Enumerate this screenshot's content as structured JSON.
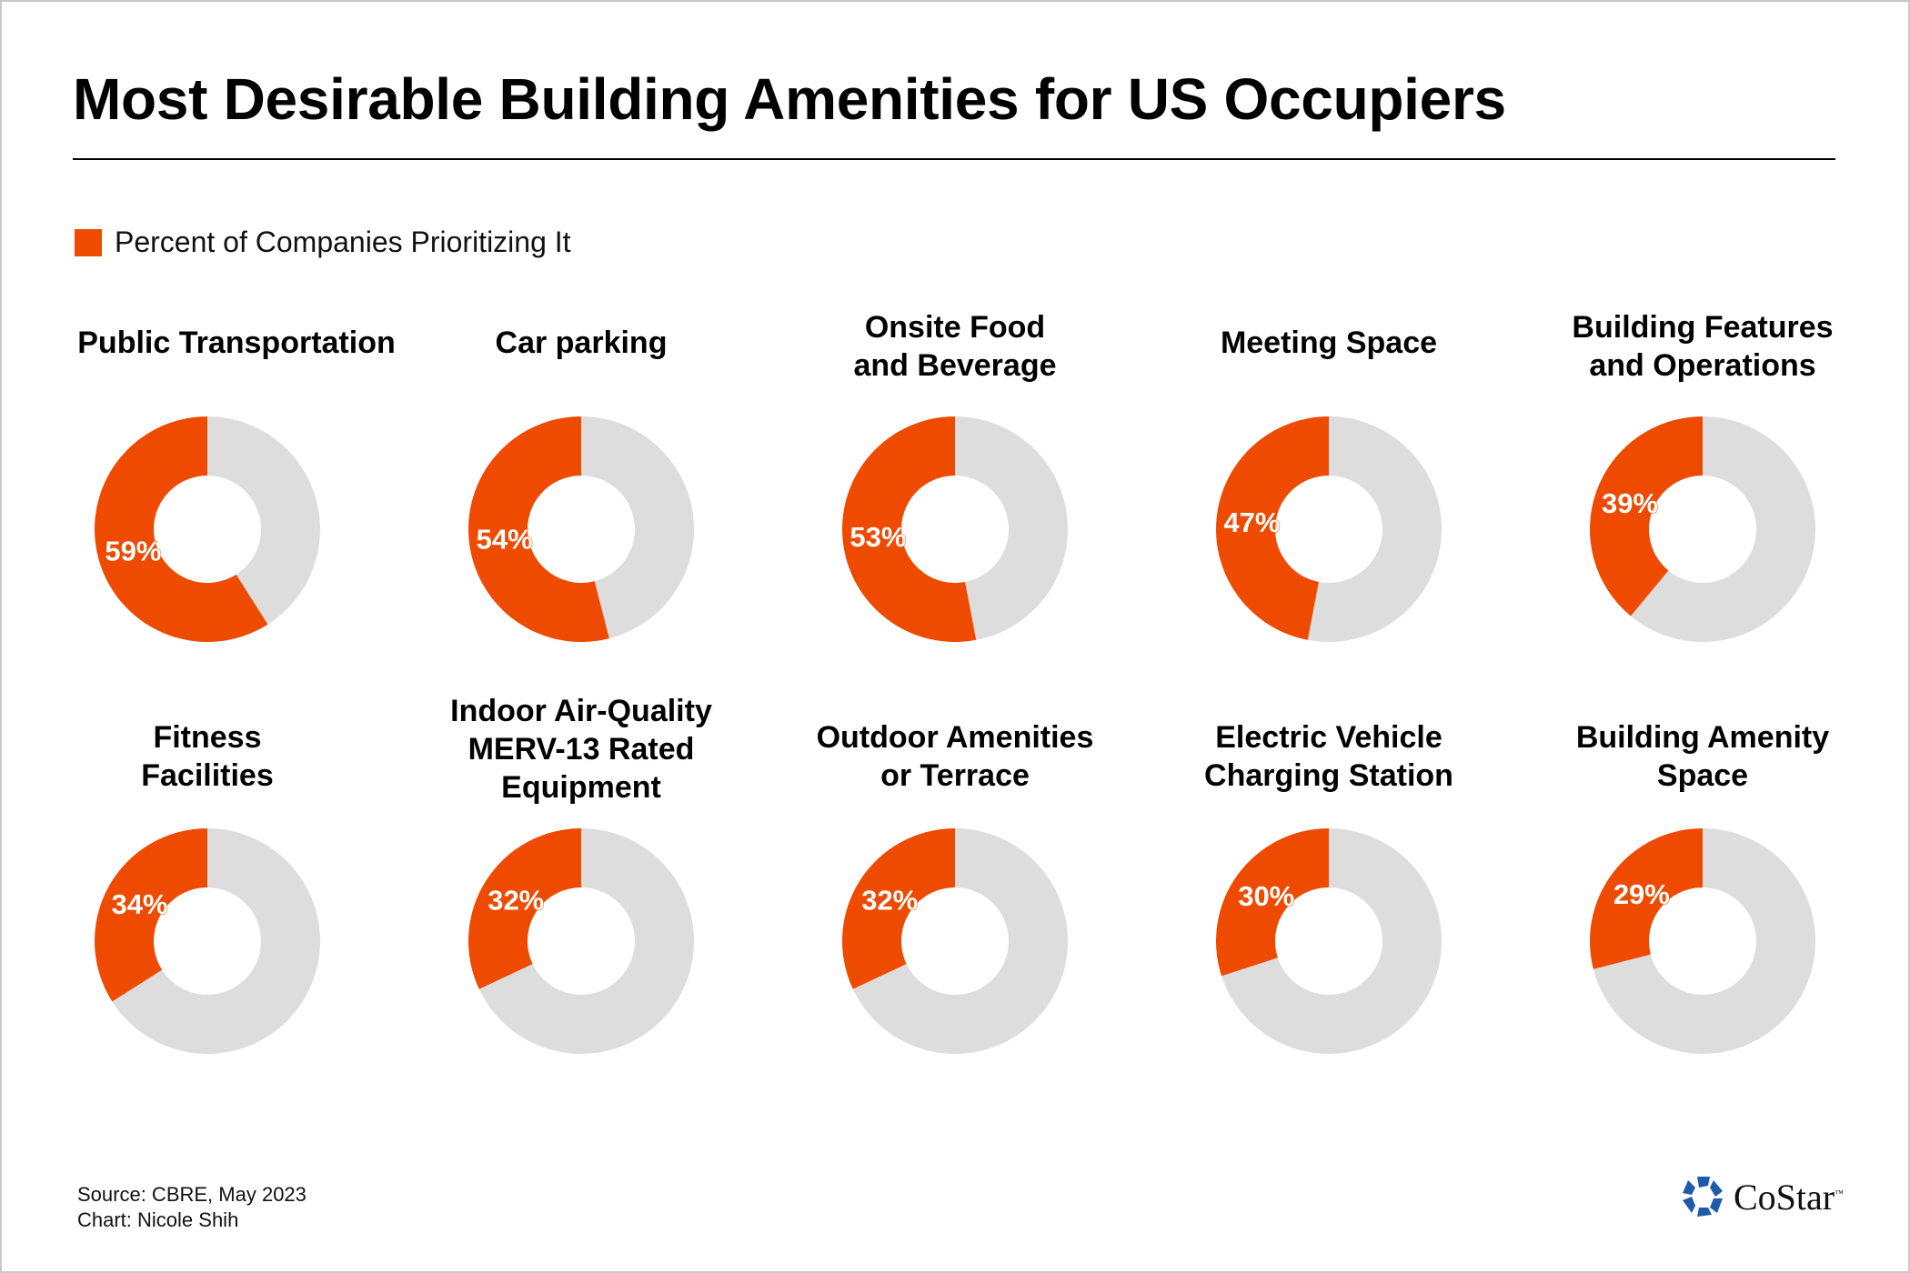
{
  "title": "Most Desirable Building Amenities for US Occupiers",
  "legend": {
    "label": "Percent of Companies Prioritizing It",
    "color": "#ee4a00"
  },
  "footer": {
    "source": "Source: CBRE, May 2023",
    "credit": "Chart: Nicole Shih"
  },
  "logo": {
    "text": "CoStar",
    "tm": "™"
  },
  "chart_data": {
    "type": "donut",
    "colors": {
      "value": "#ee4a00",
      "remainder": "#dddddd"
    },
    "series_name": "Percent of Companies Prioritizing It",
    "items": [
      {
        "label": [
          "Public Transportation"
        ],
        "value": 59,
        "display": "59%"
      },
      {
        "label": [
          "Car parking"
        ],
        "value": 54,
        "display": "54%"
      },
      {
        "label": [
          "Onsite Food",
          "and Beverage"
        ],
        "value": 53,
        "display": "53%"
      },
      {
        "label": [
          "Meeting Space"
        ],
        "value": 47,
        "display": "47%"
      },
      {
        "label": [
          "Building Features",
          "and Operations"
        ],
        "value": 39,
        "display": "39%"
      },
      {
        "label": [
          "Fitness",
          "Facilities"
        ],
        "value": 34,
        "display": "34%"
      },
      {
        "label": [
          "Indoor Air-Quality",
          "MERV-13 Rated",
          "Equipment"
        ],
        "value": 32,
        "display": "32%"
      },
      {
        "label": [
          "Outdoor Amenities",
          "or Terrace"
        ],
        "value": 32,
        "display": "32%"
      },
      {
        "label": [
          "Electric Vehicle",
          "Charging Station"
        ],
        "value": 30,
        "display": "30%"
      },
      {
        "label": [
          "Building Amenity",
          "Space"
        ],
        "value": 29,
        "display": "29%"
      }
    ]
  }
}
